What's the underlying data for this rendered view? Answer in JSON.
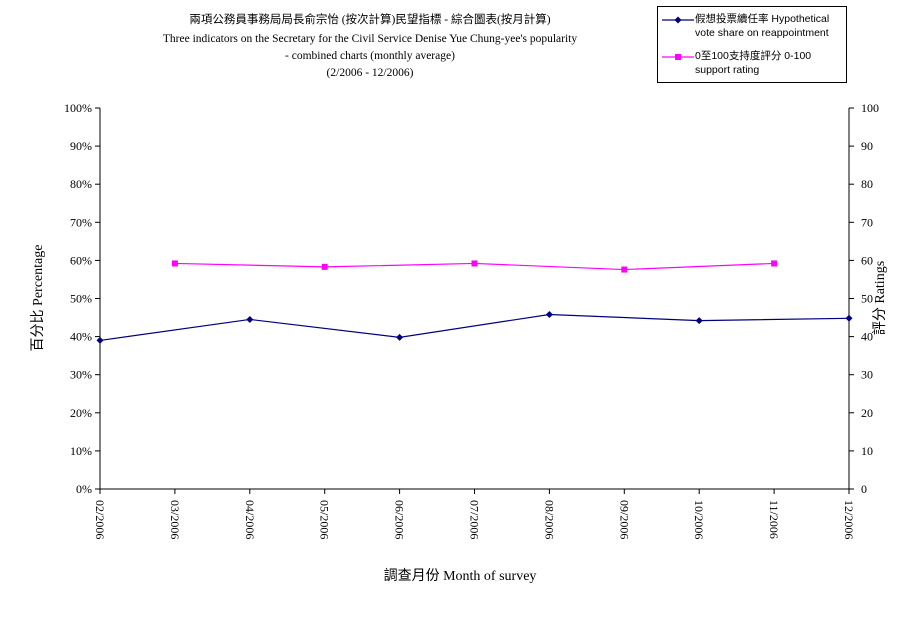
{
  "chart_data": {
    "type": "line",
    "title": "兩項公務員事務局局長俞宗怡 (按次計算)民望指標 - 綜合圖表(按月計算)",
    "subtitle": [
      "Three indicators on the Secretary for the Civil Service Denise Yue Chung-yee's popularity",
      "- combined charts (monthly average)",
      "(2/2006 - 12/2006)"
    ],
    "xlabel": "調查月份  Month of survey",
    "ylabel": "百分比  Percentage",
    "y2label": "評分  Ratings",
    "categories": [
      "02/2006",
      "03/2006",
      "04/2006",
      "05/2006",
      "06/2006",
      "07/2006",
      "08/2006",
      "09/2006",
      "10/2006",
      "11/2006",
      "12/2006"
    ],
    "ylim": [
      0,
      100
    ],
    "y_ticks": [
      "0%",
      "10%",
      "20%",
      "30%",
      "40%",
      "50%",
      "60%",
      "70%",
      "80%",
      "90%",
      "100%"
    ],
    "y2lim": [
      0,
      100
    ],
    "y2_ticks": [
      "0",
      "10",
      "20",
      "30",
      "40",
      "50",
      "60",
      "70",
      "80",
      "90",
      "100"
    ],
    "grid": false,
    "legend_position": "top-right",
    "series": [
      {
        "name": "假想投票續任率 Hypothetical vote share on reappointment",
        "axis": "left",
        "color": "#000080",
        "marker": "diamond",
        "values": [
          39.0,
          null,
          44.5,
          null,
          39.8,
          null,
          45.8,
          null,
          44.2,
          null,
          44.8
        ]
      },
      {
        "name": "0至100支持度評分 0-100 support rating",
        "axis": "right",
        "color": "#ff00ff",
        "marker": "square",
        "values": [
          null,
          59.2,
          null,
          58.3,
          null,
          59.2,
          null,
          57.6,
          null,
          59.2,
          null
        ]
      }
    ]
  }
}
